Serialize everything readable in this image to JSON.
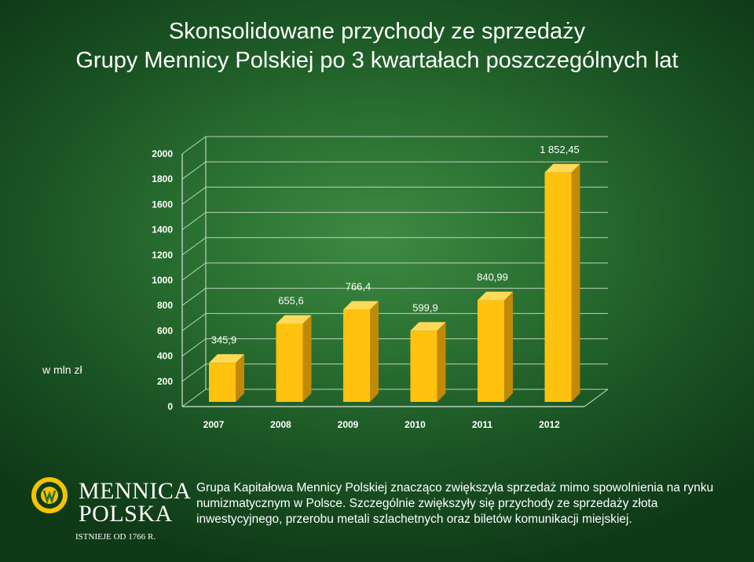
{
  "title": {
    "line1": "Skonsolidowane przychody ze sprzedaży",
    "line2": "Grupy Mennicy Polskiej po 3 kwartałach poszczególnych lat"
  },
  "unit_label": "w mln zł",
  "chart_data": {
    "type": "bar",
    "categories": [
      "2007",
      "2008",
      "2009",
      "2010",
      "2011",
      "2012"
    ],
    "values": [
      345.9,
      655.6,
      766.4,
      599.9,
      840.99,
      1852.45
    ],
    "value_labels": [
      "345,9",
      "655,6",
      "766,4",
      "599,9",
      "840,99",
      "1 852,45"
    ],
    "ylim": [
      0,
      2000
    ],
    "yticks": [
      0,
      200,
      400,
      600,
      800,
      1000,
      1200,
      1400,
      1600,
      1800,
      2000
    ],
    "ylabel": "w mln zł",
    "grid": true,
    "style": "3d",
    "bar_color": "#ffc20e"
  },
  "caption": "Grupa Kapitałowa Mennicy Polskiej znacząco zwiększyła sprzedaż mimo spowolnienia na rynku numizmatycznym  w Polsce. Szczególnie zwiększyły się przychody ze sprzedaży złota inwestycyjnego, przerobu metali szlachetnych oraz biletów komunikacji miejskiej.",
  "logo": {
    "line1": "MENNICA",
    "line2": "POLSKA",
    "since": "ISTNIEJE OD 1766 R.",
    "icon": "mennica-emblem-icon",
    "color": "#f5c400"
  }
}
